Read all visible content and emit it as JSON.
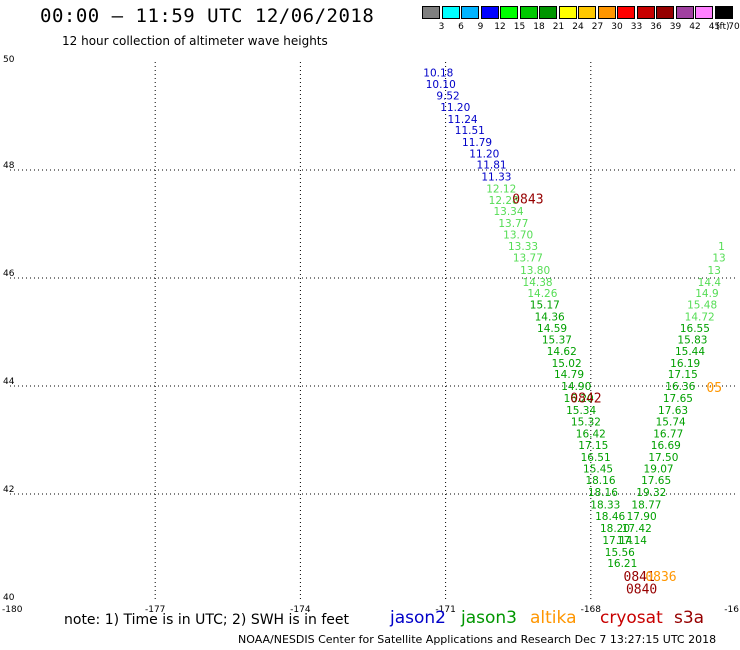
{
  "title": "00:00 – 11:59 UTC 12/06/2018",
  "subtitle": "12 hour collection of altimeter wave heights",
  "note": "note: 1) Time is in UTC; 2) SWH is in feet",
  "footer": "NOAA/NESDIS Center for Satellite Applications and Research     Dec  7 13:27:15 UTC 2018",
  "colorbar": {
    "unit": "(ft)",
    "labels": [
      "3",
      "6",
      "9",
      "12",
      "15",
      "18",
      "21",
      "24",
      "27",
      "30",
      "33",
      "36",
      "39",
      "42",
      "45",
      "70"
    ],
    "colors": [
      "#7f7f7f",
      "#00ffff",
      "#00b4ff",
      "#0000ff",
      "#00ff00",
      "#00c800",
      "#009600",
      "#ffff00",
      "#ffc800",
      "#ff9600",
      "#ff0000",
      "#c80000",
      "#960000",
      "#a040a0",
      "#ff80ff",
      "#000000"
    ]
  },
  "satellites": [
    {
      "name": "jason2",
      "color": "#0000c8"
    },
    {
      "name": "jason3",
      "color": "#009600"
    },
    {
      "name": "altika",
      "color": "#ff9600"
    },
    {
      "name": "cryosat",
      "color": "#c80000"
    },
    {
      "name": "s3a",
      "color": "#960000"
    }
  ],
  "chart_data": {
    "type": "scatter",
    "title": "00:00 – 11:59 UTC 12/06/2018",
    "subtitle": "12 hour collection of altimeter wave heights",
    "xlabel": "",
    "ylabel": "",
    "xlim": [
      -180,
      -165
    ],
    "ylim": [
      40,
      50
    ],
    "x_ticks": [
      "-180",
      "-177",
      "-174",
      "-171",
      "-168",
      "-16"
    ],
    "y_ticks": [
      "50",
      "48",
      "46",
      "44",
      "42",
      "40"
    ],
    "grid": true,
    "tracks": [
      {
        "satellite": "jason2",
        "color": "#0000c8",
        "points": [
          {
            "lon": -171.15,
            "lat": 49.79,
            "swh": "10.18"
          },
          {
            "lon": -171.1,
            "lat": 49.57,
            "swh": "10.10"
          },
          {
            "lon": -170.95,
            "lat": 49.36,
            "swh": "9.52"
          },
          {
            "lon": -170.8,
            "lat": 49.15,
            "swh": "11.20"
          },
          {
            "lon": -170.65,
            "lat": 48.93,
            "swh": "11.24"
          },
          {
            "lon": -170.5,
            "lat": 48.72,
            "swh": "11.51"
          },
          {
            "lon": -170.35,
            "lat": 48.5,
            "swh": "11.79"
          },
          {
            "lon": -170.2,
            "lat": 48.29,
            "swh": "11.20"
          },
          {
            "lon": -170.05,
            "lat": 48.08,
            "swh": "11.81"
          },
          {
            "lon": -169.95,
            "lat": 47.86,
            "swh": "11.33"
          }
        ]
      },
      {
        "satellite": "jason3",
        "color": "#55dd55",
        "points": [
          {
            "lon": -169.85,
            "lat": 47.64,
            "swh": "12.12"
          },
          {
            "lon": -169.8,
            "lat": 47.43,
            "swh": "12.28"
          },
          {
            "lon": -169.7,
            "lat": 47.22,
            "swh": "13.34"
          },
          {
            "lon": -169.6,
            "lat": 47.0,
            "swh": "13.77"
          },
          {
            "lon": -169.5,
            "lat": 46.79,
            "swh": "13.70"
          },
          {
            "lon": -169.4,
            "lat": 46.57,
            "swh": "13.33"
          },
          {
            "lon": -169.3,
            "lat": 46.36,
            "swh": "13.77"
          },
          {
            "lon": -169.15,
            "lat": 46.13,
            "swh": "13.80"
          },
          {
            "lon": -169.1,
            "lat": 45.91,
            "swh": "14.38"
          },
          {
            "lon": -169.0,
            "lat": 45.7,
            "swh": "14.26"
          }
        ]
      },
      {
        "satellite": "jason3",
        "color": "#00a000",
        "points": [
          {
            "lon": -168.95,
            "lat": 45.49,
            "swh": "15.17"
          },
          {
            "lon": -168.85,
            "lat": 45.27,
            "swh": "14.36"
          },
          {
            "lon": -168.8,
            "lat": 45.06,
            "swh": "14.59"
          },
          {
            "lon": -168.7,
            "lat": 44.84,
            "swh": "15.37"
          },
          {
            "lon": -168.6,
            "lat": 44.63,
            "swh": "14.62"
          },
          {
            "lon": -168.5,
            "lat": 44.41,
            "swh": "15.02"
          },
          {
            "lon": -168.45,
            "lat": 44.2,
            "swh": "14.79"
          },
          {
            "lon": -168.3,
            "lat": 43.98,
            "swh": "14.90"
          },
          {
            "lon": -168.25,
            "lat": 43.76,
            "swh": "16.20"
          },
          {
            "lon": -168.2,
            "lat": 43.54,
            "swh": "15.34"
          },
          {
            "lon": -168.1,
            "lat": 43.32,
            "swh": "15.32"
          },
          {
            "lon": -168.0,
            "lat": 43.1,
            "swh": "16.42"
          },
          {
            "lon": -167.95,
            "lat": 42.89,
            "swh": "17.15"
          },
          {
            "lon": -167.9,
            "lat": 42.67,
            "swh": "16.51"
          },
          {
            "lon": -167.85,
            "lat": 42.45,
            "swh": "15.45"
          },
          {
            "lon": -167.8,
            "lat": 42.24,
            "swh": "18.16"
          },
          {
            "lon": -167.75,
            "lat": 42.02,
            "swh": "18.16"
          },
          {
            "lon": -167.7,
            "lat": 41.79,
            "swh": "18.33"
          },
          {
            "lon": -167.6,
            "lat": 41.57,
            "swh": "18.46"
          },
          {
            "lon": -167.5,
            "lat": 41.35,
            "swh": "18.20"
          },
          {
            "lon": -167.45,
            "lat": 41.13,
            "swh": "17.14"
          },
          {
            "lon": -167.4,
            "lat": 40.91,
            "swh": "15.56"
          },
          {
            "lon": -167.35,
            "lat": 40.7,
            "swh": "16.21"
          },
          {
            "lon": -167.15,
            "lat": 41.13,
            "swh": "17.14"
          },
          {
            "lon": -167.05,
            "lat": 41.35,
            "swh": "17.42"
          },
          {
            "lon": -166.95,
            "lat": 41.57,
            "swh": "17.90"
          },
          {
            "lon": -166.85,
            "lat": 41.79,
            "swh": "18.77"
          },
          {
            "lon": -166.75,
            "lat": 42.02,
            "swh": "19.32"
          },
          {
            "lon": -166.65,
            "lat": 42.24,
            "swh": "17.65"
          },
          {
            "lon": -166.6,
            "lat": 42.45,
            "swh": "19.07"
          },
          {
            "lon": -166.5,
            "lat": 42.67,
            "swh": "17.50"
          },
          {
            "lon": -166.45,
            "lat": 42.89,
            "swh": "16.69"
          },
          {
            "lon": -166.4,
            "lat": 43.1,
            "swh": "16.77"
          },
          {
            "lon": -166.35,
            "lat": 43.32,
            "swh": "15.74"
          },
          {
            "lon": -166.3,
            "lat": 43.54,
            "swh": "17.63"
          },
          {
            "lon": -166.2,
            "lat": 43.76,
            "swh": "17.65"
          },
          {
            "lon": -166.15,
            "lat": 43.98,
            "swh": "16.36"
          },
          {
            "lon": -166.1,
            "lat": 44.2,
            "swh": "17.15"
          },
          {
            "lon": -166.05,
            "lat": 44.41,
            "swh": "16.19"
          },
          {
            "lon": -165.95,
            "lat": 44.63,
            "swh": "15.44"
          },
          {
            "lon": -165.9,
            "lat": 44.84,
            "swh": "15.83"
          },
          {
            "lon": -165.85,
            "lat": 45.06,
            "swh": "16.55"
          }
        ]
      },
      {
        "satellite": "jason3",
        "color": "#55dd55",
        "points": [
          {
            "lon": -165.75,
            "lat": 45.27,
            "swh": "14.72"
          },
          {
            "lon": -165.7,
            "lat": 45.49,
            "swh": "15.48"
          },
          {
            "lon": -165.6,
            "lat": 45.7,
            "swh": "14.9"
          },
          {
            "lon": -165.55,
            "lat": 45.91,
            "swh": "14.4"
          },
          {
            "lon": -165.45,
            "lat": 46.13,
            "swh": "13"
          },
          {
            "lon": -165.35,
            "lat": 46.36,
            "swh": "13"
          },
          {
            "lon": -165.3,
            "lat": 46.57,
            "swh": "1"
          }
        ]
      }
    ],
    "pass_times": [
      {
        "time": "0843",
        "lon": -169.3,
        "lat": 47.44,
        "color": "#960000"
      },
      {
        "time": "0842",
        "lon": -168.1,
        "lat": 43.76,
        "color": "#960000"
      },
      {
        "time": "0841",
        "lon": -167.0,
        "lat": 40.45,
        "color": "#960000"
      },
      {
        "time": "0840",
        "lon": -166.95,
        "lat": 40.22,
        "color": "#960000"
      },
      {
        "time": "0836",
        "lon": -166.55,
        "lat": 40.45,
        "color": "#ff9600"
      },
      {
        "time": "05",
        "lon": -165.45,
        "lat": 43.95,
        "color": "#ff9600"
      }
    ]
  }
}
